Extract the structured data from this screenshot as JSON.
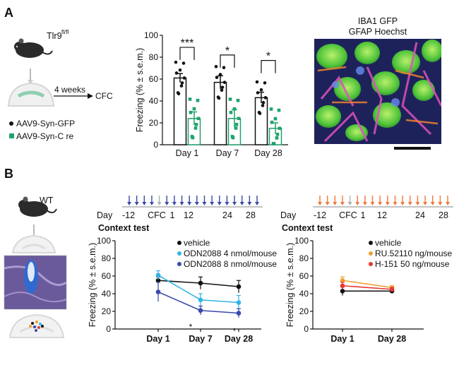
{
  "figure": {
    "panel_a_label": "A",
    "panel_b_label": "B",
    "panel_a": {
      "mouse_genotype": "Tlr9",
      "mouse_genotype_sup": "fl/fl",
      "timeline": "4 weeks",
      "test": "CFC",
      "legend": [
        {
          "label": "AAV9-Syn-GFP",
          "color": "#111111"
        },
        {
          "label": "AAV9-Syn-C re",
          "color": "#1fa36b"
        }
      ],
      "image_title_line1": "IBA1 GFP",
      "image_title_line2": "GFAP Hoechst",
      "significance": [
        "***",
        "*",
        "*"
      ]
    },
    "panel_b": {
      "mouse_label": "WT",
      "timeline_day_label": "Day",
      "timeline_ticks": [
        "-12",
        "CFC",
        "1",
        "12",
        "24",
        "28"
      ],
      "context_test_label": "Context test",
      "left_arrow_color": "#3b4aa8",
      "right_arrow_color": "#f07a3a"
    }
  },
  "chart_data": [
    {
      "type": "bar",
      "categories": [
        "Day 1",
        "Day 7",
        "Day 28"
      ],
      "ylabel": "Freezing (% ± s.e.m.)",
      "ylim": [
        0,
        100
      ],
      "yticks": [
        "0",
        "20",
        "40",
        "60",
        "80",
        "100"
      ],
      "series": [
        {
          "name": "AAV9-Syn-GFP",
          "color": "#111111",
          "values": [
            61,
            57,
            43
          ],
          "sem": [
            4,
            6,
            5
          ]
        },
        {
          "name": "AAV9-Syn-C re",
          "color": "#1fa36b",
          "values": [
            24,
            24,
            15
          ],
          "sem": [
            6,
            8,
            5
          ]
        }
      ]
    },
    {
      "type": "line",
      "categories": [
        "Day 1",
        "Day 7",
        "Day 28"
      ],
      "ylabel": "Freezing (% ± s.e.m.)",
      "ylim": [
        0,
        100
      ],
      "yticks": [
        "0",
        "20",
        "40",
        "60",
        "80",
        "100"
      ],
      "series": [
        {
          "name": "vehicle",
          "color": "#111111",
          "values": [
            55,
            52,
            48
          ],
          "sem": [
            4,
            7,
            7
          ]
        },
        {
          "name": "ODN2088 4 nmol/mouse",
          "color": "#33b5e5",
          "values": [
            61,
            33,
            30
          ],
          "sem": [
            5,
            7,
            8
          ]
        },
        {
          "name": "ODN2088 8 nmol/mouse",
          "color": "#3949ab",
          "values": [
            42,
            21,
            18
          ],
          "sem": [
            11,
            5,
            5
          ]
        }
      ],
      "annotations": [
        "*",
        "*"
      ]
    },
    {
      "type": "line",
      "categories": [
        "Day 1",
        "Day 28"
      ],
      "ylabel": "Freezing (% ± s.e.m.)",
      "ylim": [
        0,
        100
      ],
      "yticks": [
        "0",
        "20",
        "40",
        "60",
        "80",
        "100"
      ],
      "series": [
        {
          "name": "vehicle",
          "color": "#111111",
          "values": [
            43,
            43
          ],
          "sem": [
            5,
            2
          ]
        },
        {
          "name": "RU.52110 ng/mouse",
          "color": "#f0a030",
          "values": [
            55,
            47
          ],
          "sem": [
            4,
            2
          ]
        },
        {
          "name": "H-151 50 ng/mouse",
          "color": "#e53935",
          "values": [
            49,
            45
          ],
          "sem": [
            4,
            2
          ]
        }
      ]
    }
  ]
}
